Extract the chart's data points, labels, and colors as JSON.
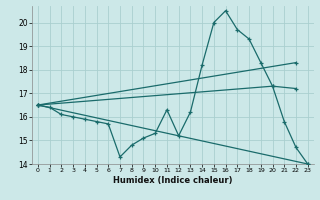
{
  "xlabel": "Humidex (Indice chaleur)",
  "bg_color": "#cce8e8",
  "line_color": "#1a6b6b",
  "grid_color": "#aacfcf",
  "xlim": [
    -0.5,
    23.5
  ],
  "ylim": [
    14,
    20.7
  ],
  "yticks": [
    14,
    15,
    16,
    17,
    18,
    19,
    20
  ],
  "xticks": [
    0,
    1,
    2,
    3,
    4,
    5,
    6,
    7,
    8,
    9,
    10,
    11,
    12,
    13,
    14,
    15,
    16,
    17,
    18,
    19,
    20,
    21,
    22,
    23
  ],
  "series": [
    {
      "x": [
        0,
        1,
        2,
        3,
        4,
        5,
        6,
        7,
        8,
        9,
        10,
        11,
        12,
        13,
        14,
        15,
        16,
        17,
        18,
        19,
        20,
        21,
        22,
        23
      ],
      "y": [
        16.5,
        16.4,
        16.1,
        16.0,
        15.9,
        15.8,
        15.7,
        14.3,
        14.8,
        15.1,
        15.3,
        16.3,
        15.2,
        16.2,
        18.2,
        20.0,
        20.5,
        19.7,
        19.3,
        18.3,
        17.3,
        15.8,
        14.7,
        14.0
      ]
    },
    {
      "x": [
        0,
        22
      ],
      "y": [
        16.5,
        18.3
      ]
    },
    {
      "x": [
        0,
        20,
        22
      ],
      "y": [
        16.5,
        17.3,
        17.2
      ]
    },
    {
      "x": [
        0,
        23
      ],
      "y": [
        16.5,
        14.0
      ]
    }
  ]
}
